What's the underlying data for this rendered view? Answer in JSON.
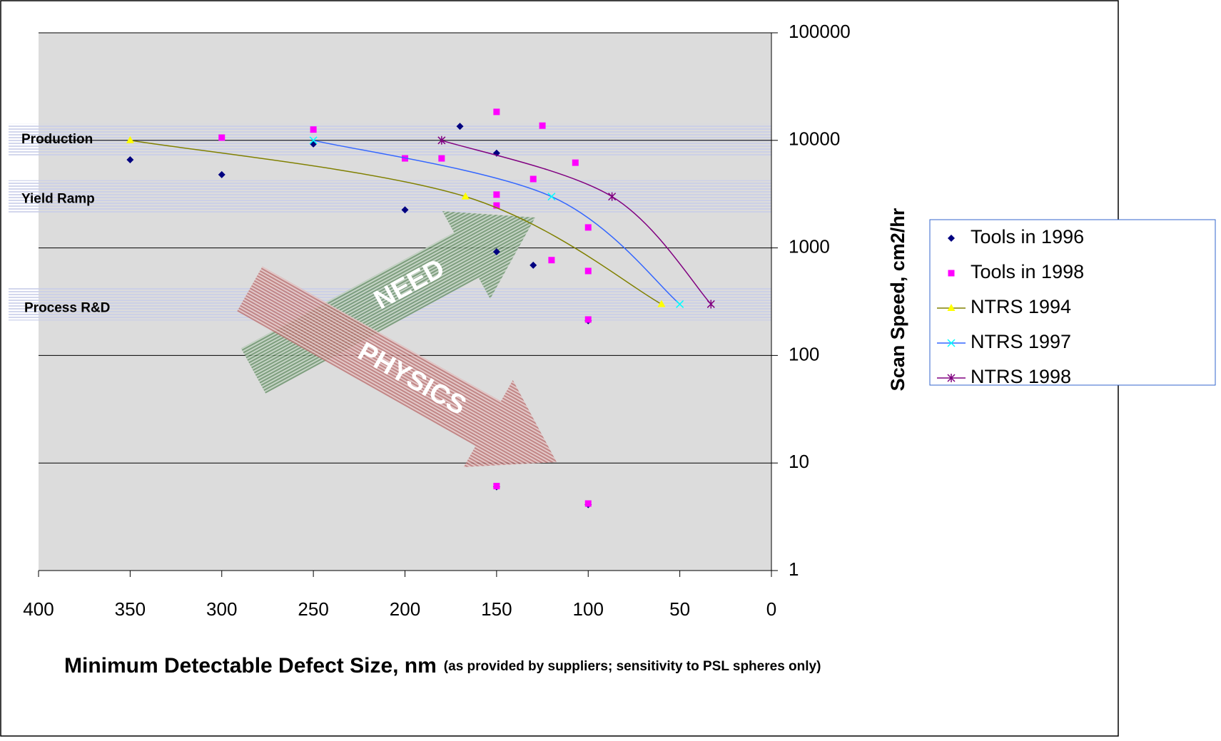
{
  "chart_data": {
    "type": "scatter-line",
    "x_label": "Minimum Detectable Defect Size, nm",
    "x_label_note": "(as provided by suppliers; sensitivity to PSL spheres only)",
    "y_label": "Scan Speed, cm2/hr",
    "xlim": [
      400,
      0
    ],
    "xticks": [
      400,
      350,
      300,
      250,
      200,
      150,
      100,
      50,
      0
    ],
    "ylim": [
      1,
      100000
    ],
    "yticks": [
      1,
      10,
      100,
      1000,
      10000,
      100000
    ],
    "y_scale": "log",
    "grid": true,
    "legend": "right",
    "bands": [
      {
        "label": "Production",
        "value": 10000
      },
      {
        "label": "Yield Ramp",
        "value": 3000
      },
      {
        "label": "Process R&D",
        "value": 300
      }
    ],
    "annotations": [
      {
        "text": "NEED",
        "color": "#5f8a5f"
      },
      {
        "text": "PHYSICS",
        "color": "#b86a6a"
      }
    ],
    "series": [
      {
        "name": "Tools in 1996",
        "color": "#000080",
        "marker": "diamond",
        "line": false,
        "x": [
          350,
          300,
          250,
          200,
          170,
          150,
          150,
          130,
          100,
          150,
          100
        ],
        "values": [
          6600,
          4800,
          9250,
          2260,
          13500,
          7600,
          920,
          690,
          210,
          6,
          4.1
        ]
      },
      {
        "name": "Tools in 1998",
        "color": "#ff00ff",
        "marker": "square",
        "line": false,
        "x": [
          300,
          250,
          200,
          180,
          150,
          150,
          150,
          130,
          125,
          107,
          120,
          100,
          100,
          100,
          150,
          100
        ],
        "values": [
          10600,
          12600,
          6800,
          6800,
          18400,
          3130,
          2480,
          4370,
          13700,
          6200,
          770,
          1550,
          610,
          216,
          6.1,
          4.2
        ]
      },
      {
        "name": "NTRS 1994",
        "color": "#808000",
        "marker_color": "#ffff00",
        "marker": "triangle",
        "line": true,
        "x": [
          350,
          167,
          60
        ],
        "values": [
          10000,
          3000,
          300
        ]
      },
      {
        "name": "NTRS 1997",
        "color": "#3366ff",
        "marker_color": "#00ffff",
        "marker": "x",
        "line": true,
        "x": [
          250,
          120,
          50
        ],
        "values": [
          10000,
          3000,
          300
        ]
      },
      {
        "name": "NTRS 1998",
        "color": "#800080",
        "marker_color": "#800080",
        "marker": "star",
        "line": true,
        "x": [
          180,
          87,
          33
        ],
        "values": [
          10000,
          3000,
          300
        ]
      }
    ]
  }
}
